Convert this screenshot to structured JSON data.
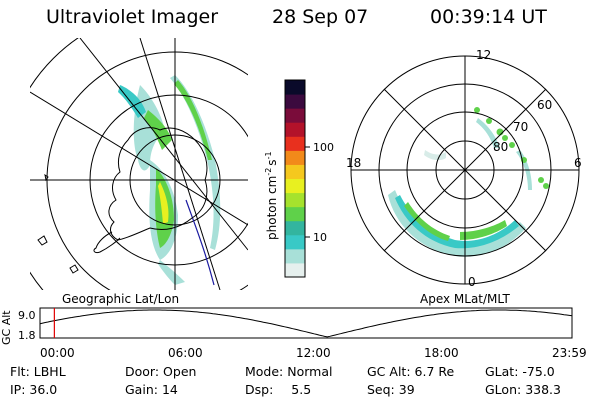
{
  "header": {
    "instrument": "Ultraviolet Imager",
    "date": "28 Sep 07",
    "time": "00:39:14 UT"
  },
  "colorbar": {
    "label": "photon cm",
    "label_exp": "-2",
    "label_unit": "s",
    "label_unit_exp": "-1",
    "ticks": [
      "100",
      "10"
    ],
    "colors": [
      "#e6f0ee",
      "#a8e0d8",
      "#39c9c6",
      "#33b59f",
      "#5fd14a",
      "#a6e22d",
      "#e8f020",
      "#f5c81e",
      "#f28a1a",
      "#e8301e",
      "#b3122a",
      "#7a0c3a",
      "#3b0a3e",
      "#0a0a2a"
    ]
  },
  "left_map": {
    "caption": "Geographic Lat/Lon"
  },
  "right_map": {
    "caption": "Apex MLat/MLT",
    "mlt_labels": {
      "top": "12",
      "bottom": "0",
      "left": "18",
      "right": "6"
    },
    "lat_labels": [
      "60",
      "70",
      "80"
    ]
  },
  "timeline": {
    "axis_label": "GC Alt",
    "y_ticks": [
      "9.0",
      "1.8"
    ],
    "x_ticks": [
      "00:00",
      "06:00",
      "12:00",
      "18:00",
      "23:59"
    ],
    "current_time_fraction": 0.027
  },
  "status": {
    "row1": [
      {
        "label": "Flt:",
        "value": "LBHL"
      },
      {
        "label": "Door:",
        "value": "Open"
      },
      {
        "label": "Mode:",
        "value": "Normal"
      },
      {
        "label": "GC Alt:",
        "value": "6.7 Re"
      },
      {
        "label": "GLat:",
        "value": "-75.0"
      }
    ],
    "row2": [
      {
        "label": "IP:",
        "value": "36.0"
      },
      {
        "label": "Gain:",
        "value": "14"
      },
      {
        "label": "Dsp:",
        "value": "5.5"
      },
      {
        "label": "Seq:",
        "value": "39"
      },
      {
        "label": "GLon:",
        "value": "338.3"
      }
    ]
  }
}
